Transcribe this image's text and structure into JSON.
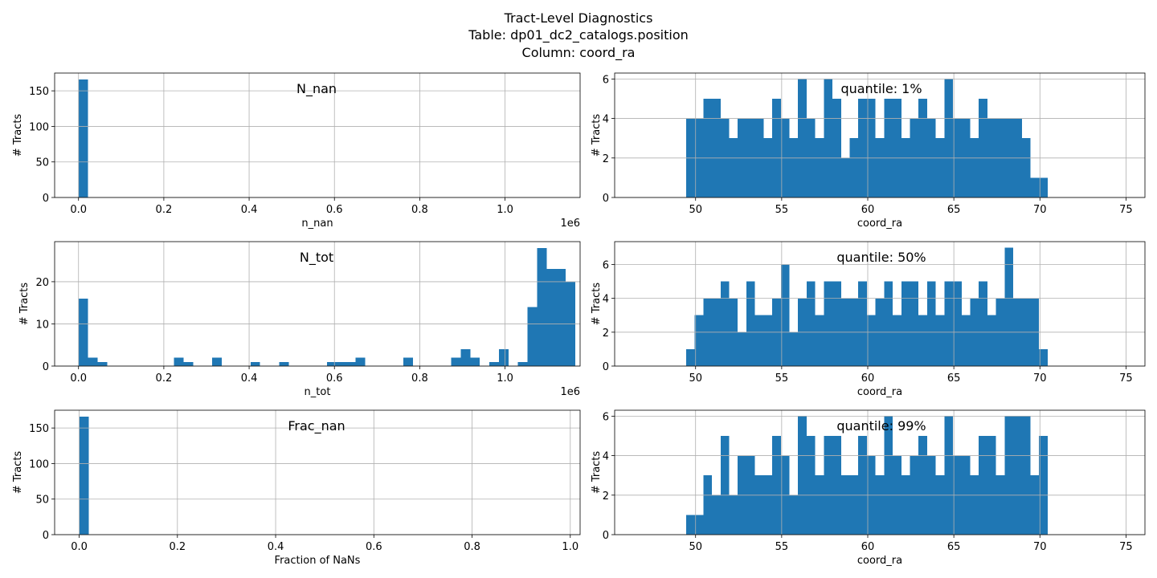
{
  "figure": {
    "title_lines": [
      "Tract-Level Diagnostics",
      "Table:  dp01_dc2_catalogs.position",
      "Column:  coord_ra"
    ]
  },
  "colors": {
    "bar": "#1f77b4",
    "grid": "#b0b0b0",
    "axis": "#000000"
  },
  "chart_data": [
    {
      "id": "n_nan",
      "type": "bar",
      "title": "N_nan",
      "xlabel": "n_nan",
      "ylabel": "# Tracts",
      "x_offset_label": "1e6",
      "xlim": [
        -0.056,
        1.176
      ],
      "ylim": [
        0,
        175
      ],
      "xticks": [
        0.0,
        0.2,
        0.4,
        0.6,
        0.8,
        1.0
      ],
      "xtick_labels": [
        "0.0",
        "0.2",
        "0.4",
        "0.6",
        "0.8",
        "1.0"
      ],
      "yticks": [
        0,
        50,
        100,
        150
      ],
      "ytick_labels": [
        "0",
        "50",
        "100",
        "150"
      ],
      "bars": [
        {
          "x0": 0.0,
          "x1": 0.0224,
          "count": 166
        }
      ]
    },
    {
      "id": "n_tot",
      "type": "bar",
      "title": "N_tot",
      "xlabel": "n_tot",
      "ylabel": "# Tracts",
      "x_offset_label": "1e6",
      "xlim": [
        -0.056,
        1.176
      ],
      "ylim": [
        0,
        29.5
      ],
      "xticks": [
        0.0,
        0.2,
        0.4,
        0.6,
        0.8,
        1.0
      ],
      "xtick_labels": [
        "0.0",
        "0.2",
        "0.4",
        "0.6",
        "0.8",
        "1.0"
      ],
      "yticks": [
        0,
        10,
        20
      ],
      "ytick_labels": [
        "0",
        "10",
        "20"
      ],
      "bin_start": 0.0,
      "bin_width": 0.0224,
      "counts": [
        16,
        2,
        1,
        0,
        0,
        0,
        0,
        0,
        0,
        0,
        2,
        1,
        0,
        0,
        2,
        0,
        0,
        0,
        1,
        0,
        0,
        1,
        0,
        0,
        0,
        0,
        1,
        1,
        1,
        2,
        0,
        0,
        0,
        0,
        2,
        0,
        0,
        0,
        0,
        2,
        4,
        2,
        0,
        1,
        4,
        0,
        1,
        14,
        28,
        23,
        23,
        20
      ]
    },
    {
      "id": "frac_nan",
      "type": "bar",
      "title": "Frac_nan",
      "xlabel": "Fraction of NaNs",
      "ylabel": "# Tracts",
      "xlim": [
        -0.05,
        1.02
      ],
      "ylim": [
        0,
        175
      ],
      "xticks": [
        0.0,
        0.2,
        0.4,
        0.6,
        0.8,
        1.0
      ],
      "xtick_labels": [
        "0.0",
        "0.2",
        "0.4",
        "0.6",
        "0.8",
        "1.0"
      ],
      "yticks": [
        0,
        50,
        100,
        150
      ],
      "ytick_labels": [
        "0",
        "50",
        "100",
        "150"
      ],
      "bars": [
        {
          "x0": 0.0,
          "x1": 0.0196,
          "count": 166
        }
      ]
    },
    {
      "id": "q1",
      "type": "bar",
      "title": "quantile: 1%",
      "xlabel": "coord_ra",
      "ylabel": "# Tracts",
      "xlim": [
        45.3,
        76.1
      ],
      "ylim": [
        0,
        6.3
      ],
      "xticks": [
        50,
        55,
        60,
        65,
        70,
        75
      ],
      "xtick_labels": [
        "50",
        "55",
        "60",
        "65",
        "70",
        "75"
      ],
      "yticks": [
        0,
        2,
        4,
        6
      ],
      "ytick_labels": [
        "0",
        "2",
        "4",
        "6"
      ],
      "bin_start": 49.45,
      "bin_width": 0.5,
      "counts": [
        4,
        4,
        5,
        5,
        4,
        3,
        4,
        4,
        4,
        3,
        5,
        4,
        3,
        6,
        4,
        3,
        6,
        5,
        2,
        3,
        5,
        5,
        3,
        5,
        5,
        3,
        4,
        5,
        4,
        3,
        6,
        4,
        4,
        3,
        5,
        4,
        4,
        4,
        4,
        3,
        1,
        1,
        0,
        0,
        0,
        0,
        0,
        0,
        0,
        0
      ]
    },
    {
      "id": "q50",
      "type": "bar",
      "title": "quantile: 50%",
      "xlabel": "coord_ra",
      "ylabel": "# Tracts",
      "xlim": [
        45.3,
        76.1
      ],
      "ylim": [
        0,
        7.35
      ],
      "xticks": [
        50,
        55,
        60,
        65,
        70,
        75
      ],
      "xtick_labels": [
        "50",
        "55",
        "60",
        "65",
        "70",
        "75"
      ],
      "yticks": [
        0,
        2,
        4,
        6
      ],
      "ytick_labels": [
        "0",
        "2",
        "4",
        "6"
      ],
      "bin_start": 49.45,
      "bin_width": 0.5,
      "counts": [
        1,
        3,
        4,
        4,
        5,
        4,
        2,
        5,
        3,
        3,
        4,
        6,
        2,
        4,
        5,
        3,
        5,
        5,
        4,
        4,
        5,
        3,
        4,
        5,
        3,
        5,
        5,
        3,
        5,
        3,
        5,
        5,
        3,
        4,
        5,
        3,
        4,
        7,
        4,
        4,
        4,
        1,
        0,
        0,
        0,
        0,
        0,
        0,
        0,
        0
      ]
    },
    {
      "id": "q99",
      "type": "bar",
      "title": "quantile: 99%",
      "xlabel": "coord_ra",
      "ylabel": "# Tracts",
      "xlim": [
        45.3,
        76.1
      ],
      "ylim": [
        0,
        6.3
      ],
      "xticks": [
        50,
        55,
        60,
        65,
        70,
        75
      ],
      "xtick_labels": [
        "50",
        "55",
        "60",
        "65",
        "70",
        "75"
      ],
      "yticks": [
        0,
        2,
        4,
        6
      ],
      "ytick_labels": [
        "0",
        "2",
        "4",
        "6"
      ],
      "bin_start": 49.45,
      "bin_width": 0.5,
      "counts": [
        1,
        1,
        3,
        2,
        5,
        2,
        4,
        4,
        3,
        3,
        5,
        4,
        2,
        6,
        5,
        3,
        5,
        5,
        3,
        3,
        5,
        4,
        3,
        6,
        4,
        3,
        4,
        5,
        4,
        3,
        6,
        4,
        4,
        3,
        5,
        5,
        3,
        6,
        6,
        6,
        3,
        5,
        0,
        0,
        0,
        0,
        0,
        0,
        0,
        0
      ]
    }
  ]
}
